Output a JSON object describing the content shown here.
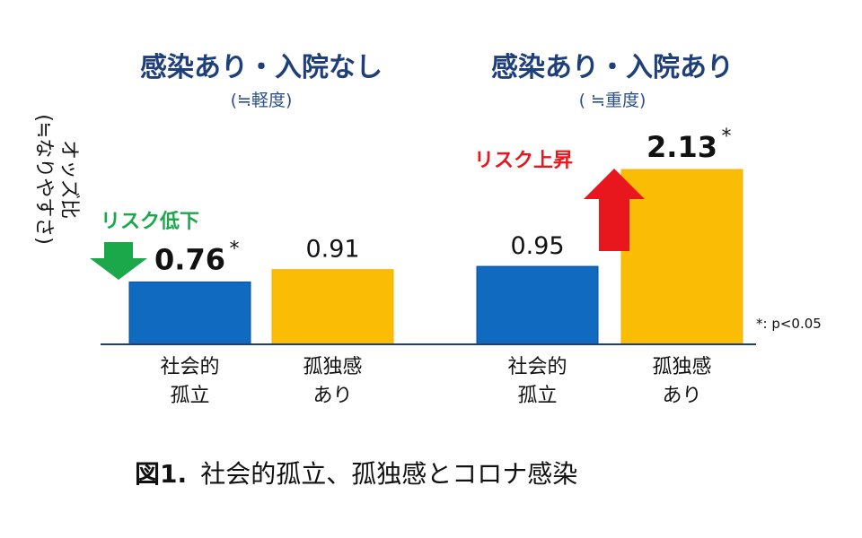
{
  "figure_caption": {
    "label": "図1.",
    "text": "社会的孤立、孤独感とコロナ感染"
  },
  "ylabel_lines": [
    "オッズ比",
    "(≒なりやすさ)"
  ],
  "significance_note": "*: p<0.05",
  "colors": {
    "social_isolation": "#0f6ac0",
    "loneliness": "#fbbc05",
    "axis": "#1f3f7a",
    "risk_down": "#1aa84a",
    "risk_up": "#e8161d"
  },
  "chart_data": {
    "type": "bar",
    "ylabel": "オッズ比 (≒なりやすさ)",
    "groups": [
      {
        "title": "感染あり・入院なし",
        "subtitle": "(≒軽度)",
        "annotation": "リスク低下",
        "annotation_direction": "down",
        "bars": [
          {
            "category_lines": [
              "社会的",
              "孤立"
            ],
            "value": 0.76,
            "value_label": "0.76",
            "significant": true,
            "series": "social_isolation"
          },
          {
            "category_lines": [
              "孤独感",
              "あり"
            ],
            "value": 0.91,
            "value_label": "0.91",
            "significant": false,
            "series": "loneliness"
          }
        ]
      },
      {
        "title": "感染あり・入院あり",
        "subtitle": "( ≒重度)",
        "annotation": "リスク上昇",
        "annotation_direction": "up",
        "bars": [
          {
            "category_lines": [
              "社会的",
              "孤立"
            ],
            "value": 0.95,
            "value_label": "0.95",
            "significant": false,
            "series": "social_isolation"
          },
          {
            "category_lines": [
              "孤独感",
              "あり"
            ],
            "value": 2.13,
            "value_label": "2.13",
            "significant": true,
            "series": "loneliness"
          }
        ]
      }
    ]
  }
}
